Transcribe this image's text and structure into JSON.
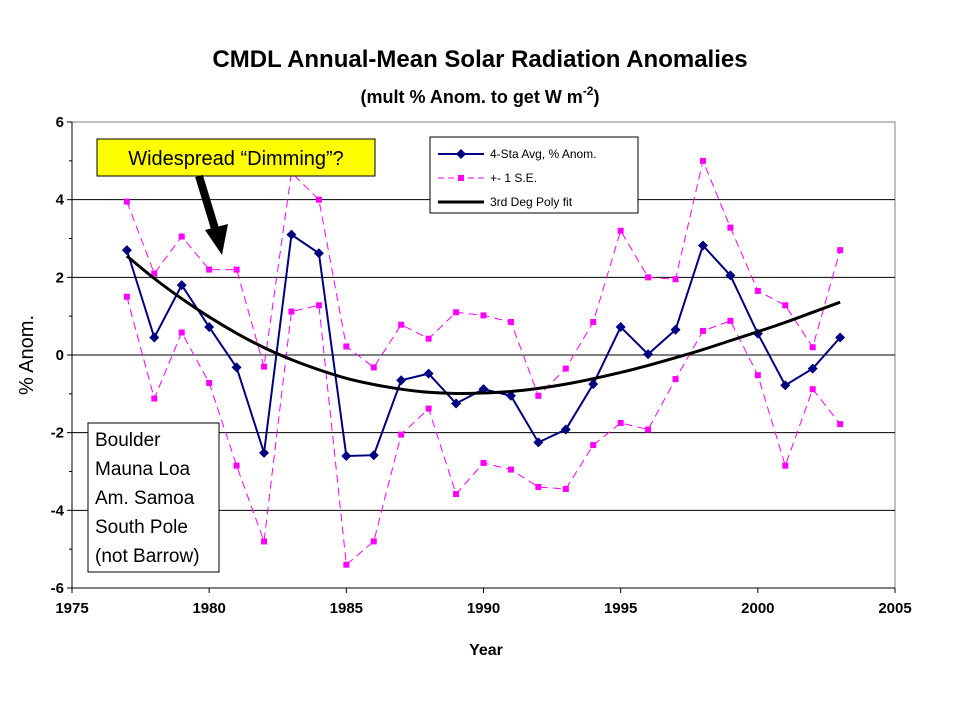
{
  "chart_data": {
    "type": "line",
    "title": "CMDL Annual-Mean Solar Radiation Anomalies",
    "subtitle_main": "(mult % Anom. to get W m",
    "subtitle_sup": "-2",
    "subtitle_end": ")",
    "xlabel": "Year",
    "ylabel": "% Anom.",
    "xlim": [
      1975,
      2005
    ],
    "ylim": [
      -6,
      6
    ],
    "x_ticks": [
      "1975",
      "1980",
      "1985",
      "1990",
      "1995",
      "2000",
      "2005"
    ],
    "y_ticks": [
      "-6",
      "-4",
      "-2",
      "0",
      "2",
      "4",
      "6"
    ],
    "grid": "horizontal",
    "legend_position": "top-right",
    "x": [
      1977,
      1978,
      1979,
      1980,
      1981,
      1982,
      1983,
      1984,
      1985,
      1986,
      1987,
      1988,
      1989,
      1990,
      1991,
      1992,
      1993,
      1994,
      1995,
      1996,
      1997,
      1998,
      1999,
      2000,
      2001,
      2002,
      2003
    ],
    "series": [
      {
        "name": "4-Sta Avg,  % Anom.",
        "color": "#000080",
        "marker": "diamond",
        "values": [
          2.7,
          0.45,
          1.8,
          0.72,
          -0.32,
          -2.52,
          3.1,
          2.62,
          -2.6,
          -2.58,
          -0.65,
          -0.48,
          -1.25,
          -0.88,
          -1.05,
          -2.25,
          -1.92,
          -0.75,
          0.72,
          0.02,
          0.65,
          2.82,
          2.05,
          0.55,
          -0.78,
          -0.35,
          0.45
        ]
      },
      {
        "name": "+- 1 S.E.",
        "color": "#ff00ff",
        "marker": "square",
        "dashed": true,
        "upper": [
          3.95,
          2.1,
          3.05,
          2.2,
          2.2,
          -0.3,
          4.7,
          4.0,
          0.22,
          -0.32,
          0.78,
          0.42,
          1.1,
          1.02,
          0.85,
          -1.05,
          -0.35,
          0.85,
          3.2,
          2.0,
          1.95,
          5.0,
          3.28,
          1.65,
          1.28,
          0.2,
          2.7
        ],
        "lower": [
          1.5,
          -1.12,
          0.58,
          -0.72,
          -2.85,
          -4.8,
          1.12,
          1.28,
          -5.4,
          -4.8,
          -2.05,
          -1.38,
          -3.58,
          -2.78,
          -2.95,
          -3.4,
          -3.45,
          -2.32,
          -1.75,
          -1.92,
          -0.62,
          0.62,
          0.88,
          -0.52,
          -2.85,
          -0.88,
          -1.78
        ]
      },
      {
        "name": "3rd Deg Poly fit",
        "color": "#000000",
        "type": "poly3",
        "values": [
          2.55,
          1.97,
          1.45,
          0.98,
          0.56,
          0.19,
          -0.12,
          -0.38,
          -0.6,
          -0.76,
          -0.88,
          -0.96,
          -0.99,
          -0.98,
          -0.94,
          -0.86,
          -0.75,
          -0.61,
          -0.45,
          -0.27,
          -0.07,
          0.14,
          0.37,
          0.6,
          0.84,
          1.1,
          1.36
        ]
      }
    ],
    "annotation": "Widespread “Dimming”?",
    "stations": [
      "Boulder",
      "Mauna Loa",
      "Am. Samoa",
      "South Pole",
      "(not Barrow)"
    ]
  }
}
